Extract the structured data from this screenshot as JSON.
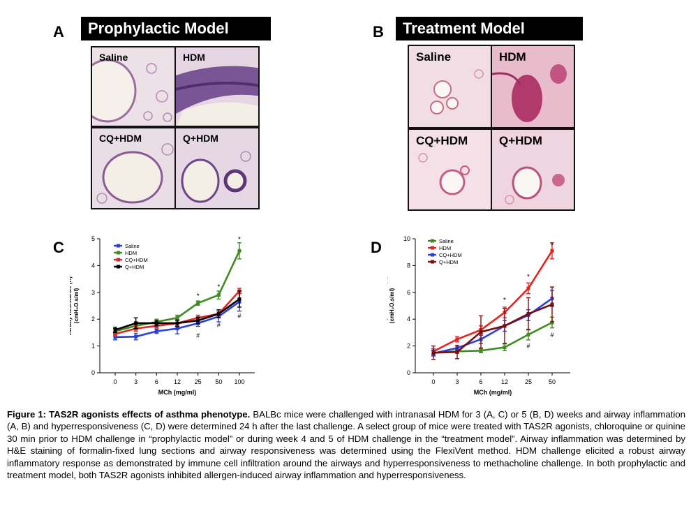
{
  "panels": {
    "A": {
      "letter": "A",
      "title": "Prophylactic Model",
      "images": [
        "Saline",
        "HDM",
        "CQ+HDM",
        "Q+HDM"
      ]
    },
    "B": {
      "letter": "B",
      "title": "Treatment Model",
      "images": [
        "Saline",
        "HDM",
        "CQ+HDM",
        "Q+HDM"
      ]
    },
    "C": {
      "letter": "C"
    },
    "D": {
      "letter": "D"
    }
  },
  "colors": {
    "saline": "#2a3fe0",
    "hdm": "#3f8c1f",
    "cq_hdm": "#e8231e",
    "q_hdm": "#000000",
    "d_saline": "#3f8c1f",
    "d_hdm": "#e8231e",
    "d_cq": "#2a3fe0",
    "d_q": "#7a0e0e",
    "tissue_pink": "#e7c8d8",
    "tissue_purple": "#7d4a8f"
  },
  "chart_data": [
    {
      "panel": "C",
      "type": "line",
      "categories": [
        "0",
        "3",
        "6",
        "12",
        "25",
        "50",
        "100"
      ],
      "xlabel": "MCh (mg/ml)",
      "ylabel_line1": "Airway Resistance (R)",
      "ylabel_line2": "(cmH₂O.s/ml)",
      "ylim": [
        0,
        5
      ],
      "yticks": [
        "0",
        "1",
        "2",
        "3",
        "4",
        "5"
      ],
      "legend_position": "top-left",
      "series": [
        {
          "name": "Saline",
          "color": "#2a3fe0",
          "values": [
            1.33,
            1.35,
            1.55,
            1.65,
            1.85,
            2.1,
            2.65
          ],
          "err": [
            0.1,
            0.12,
            0.08,
            0.2,
            0.12,
            0.2,
            0.35
          ]
        },
        {
          "name": "HDM",
          "color": "#3f8c1f",
          "values": [
            1.55,
            1.75,
            1.9,
            2.05,
            2.6,
            2.9,
            4.55
          ],
          "err": [
            0.1,
            0.15,
            0.1,
            0.1,
            0.08,
            0.15,
            0.3
          ]
        },
        {
          "name": "CQ+HDM",
          "color": "#e8231e",
          "values": [
            1.45,
            1.65,
            1.75,
            1.85,
            2.05,
            2.2,
            3.05
          ],
          "err": [
            0.08,
            0.1,
            0.08,
            0.1,
            0.1,
            0.1,
            0.1
          ]
        },
        {
          "name": "Q+HDM",
          "color": "#000000",
          "values": [
            1.6,
            1.85,
            1.85,
            1.85,
            1.95,
            2.2,
            2.75
          ],
          "err": [
            0.1,
            0.2,
            0.1,
            0.12,
            0.12,
            0.15,
            0.3
          ]
        }
      ],
      "annotations": [
        {
          "text": "*",
          "x_index": 4,
          "y": 2.78
        },
        {
          "text": "*",
          "x_index": 5,
          "y": 3.12
        },
        {
          "text": "*",
          "x_index": 6,
          "y": 4.9
        },
        {
          "text": "#",
          "x_index": 4,
          "y": 1.32
        },
        {
          "text": "#",
          "x_index": 5,
          "y": 1.7
        },
        {
          "text": "#",
          "x_index": 6,
          "y": 2.05
        }
      ]
    },
    {
      "panel": "D",
      "type": "line",
      "categories": [
        "0",
        "3",
        "6",
        "12",
        "25",
        "50"
      ],
      "xlabel": "MCh (mg/ml)",
      "ylabel_line1": "Airway Resistance (R)",
      "ylabel_line2": "(cmH₂O.s/ml)",
      "ylim": [
        0,
        10
      ],
      "yticks": [
        "0",
        "2",
        "4",
        "6",
        "8",
        "10"
      ],
      "legend_position": "top-left",
      "series": [
        {
          "name": "Saline",
          "color": "#3f8c1f",
          "values": [
            1.5,
            1.6,
            1.65,
            1.9,
            2.85,
            3.75
          ],
          "err": [
            0.2,
            0.15,
            0.15,
            0.25,
            0.4,
            0.4
          ]
        },
        {
          "name": "HDM",
          "color": "#e8231e",
          "values": [
            1.6,
            2.5,
            3.2,
            4.5,
            6.3,
            9.1
          ],
          "err": [
            0.2,
            0.2,
            0.3,
            0.4,
            0.4,
            0.6
          ]
        },
        {
          "name": "CQ+HDM",
          "color": "#2a3fe0",
          "values": [
            1.45,
            1.85,
            2.5,
            3.5,
            4.3,
            5.55
          ],
          "err": [
            0.2,
            0.2,
            0.3,
            0.4,
            0.4,
            0.6
          ]
        },
        {
          "name": "Q+HDM",
          "color": "#7a0e0e",
          "values": [
            1.5,
            1.55,
            3.05,
            3.5,
            4.4,
            5.1
          ],
          "err": [
            0.5,
            0.5,
            1.2,
            1.3,
            1.2,
            1.3
          ]
        }
      ],
      "annotations": [
        {
          "text": "*",
          "x_index": 3,
          "y": 5.25
        },
        {
          "text": "*",
          "x_index": 4,
          "y": 7.0
        },
        {
          "text": "*",
          "x_index": 5,
          "y": 9.35
        },
        {
          "text": "#",
          "x_index": 4,
          "y": 1.85
        },
        {
          "text": "#",
          "x_index": 5,
          "y": 2.65
        }
      ]
    }
  ],
  "caption": {
    "bold": "Figure 1: TAS2R agonists  effects of asthma phenotype.",
    "body": "  BALBc mice were challenged with intranasal HDM for  3 (A, C) or 5 (B, D) weeks and airway inflammation (A, B) and hyperresponsiveness (C, D) were determined 24 h after the last challenge. A select group of mice were treated with TAS2R agonists, chloroquine or quinine 30 min prior to HDM challenge in “prophylactic model” or during week 4 and 5 of HDM challenge in the “treatment model”.   Airway inflammation was determined by H&E staining of formalin-fixed lung sections and airway responsiveness was determined using the FlexiVent method. HDM challenge elicited a robust airway inflammatory response as demonstrated by immune cell infiltration around the airways and hyperresponsiveness to methacholine challenge. In both prophylactic and treatment model, both TAS2R agonists inhibited allergen-induced airway inflammation and hyperresponsiveness."
  }
}
